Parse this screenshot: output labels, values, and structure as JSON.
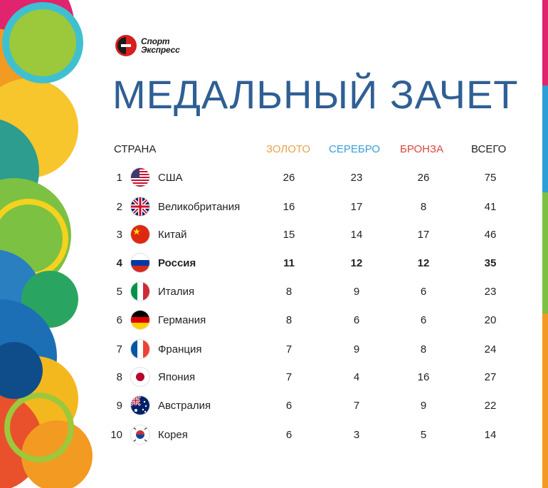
{
  "brand": {
    "line1": "Спорт",
    "line2": "Экспресс"
  },
  "title": "МЕДАЛЬНЫЙ ЗАЧЕТ",
  "headers": {
    "country": "СТРАНА",
    "gold": "ЗОЛОТО",
    "silver": "СЕРЕБРО",
    "bronze": "БРОНЗА",
    "total": "ВСЕГО"
  },
  "colors": {
    "title": "#2f5f94",
    "gold": "#e8a24a",
    "silver": "#3a9ed8",
    "bronze": "#d9473e"
  },
  "rows": [
    {
      "rank": "1",
      "country": "США",
      "flag": "usa-flag-icon",
      "gold": "26",
      "silver": "23",
      "bronze": "26",
      "total": "75"
    },
    {
      "rank": "2",
      "country": "Великобритания",
      "flag": "uk-flag-icon",
      "gold": "16",
      "silver": "17",
      "bronze": "8",
      "total": "41"
    },
    {
      "rank": "3",
      "country": "Китай",
      "flag": "china-flag-icon",
      "gold": "15",
      "silver": "14",
      "bronze": "17",
      "total": "46"
    },
    {
      "rank": "4",
      "country": "Россия",
      "flag": "russia-flag-icon",
      "gold": "11",
      "silver": "12",
      "bronze": "12",
      "total": "35",
      "highlight": true
    },
    {
      "rank": "5",
      "country": "Италия",
      "flag": "italy-flag-icon",
      "gold": "8",
      "silver": "9",
      "bronze": "6",
      "total": "23"
    },
    {
      "rank": "6",
      "country": "Германия",
      "flag": "germany-flag-icon",
      "gold": "8",
      "silver": "6",
      "bronze": "6",
      "total": "20"
    },
    {
      "rank": "7",
      "country": "Франция",
      "flag": "france-flag-icon",
      "gold": "7",
      "silver": "9",
      "bronze": "8",
      "total": "24"
    },
    {
      "rank": "8",
      "country": "Япония",
      "flag": "japan-flag-icon",
      "gold": "7",
      "silver": "4",
      "bronze": "16",
      "total": "27"
    },
    {
      "rank": "9",
      "country": "Австралия",
      "flag": "australia-flag-icon",
      "gold": "6",
      "silver": "7",
      "bronze": "9",
      "total": "22"
    },
    {
      "rank": "10",
      "country": "Корея",
      "flag": "korea-flag-icon",
      "gold": "6",
      "silver": "3",
      "bronze": "5",
      "total": "14"
    }
  ]
}
